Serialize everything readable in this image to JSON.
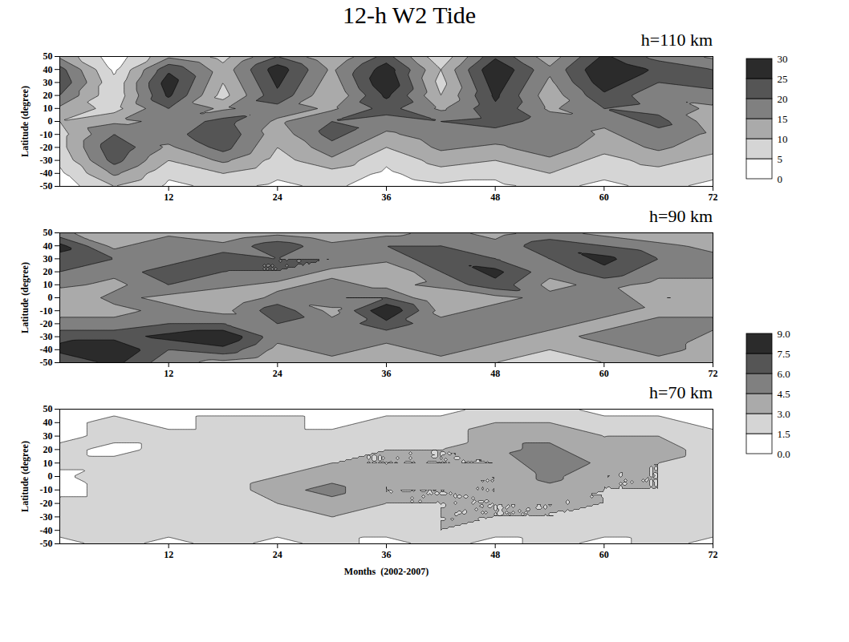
{
  "chart_data": {
    "type": "contour",
    "title": "12-h W2 Tide",
    "ylabel": "Latitude (degree)",
    "x": [
      0,
      6,
      12,
      18,
      24,
      30,
      36,
      42,
      48,
      54,
      60,
      66,
      72
    ],
    "y": [
      -50,
      -40,
      -30,
      -20,
      -10,
      0,
      10,
      20,
      30,
      40,
      50
    ],
    "xlim": [
      0,
      72
    ],
    "xticks": [
      12,
      24,
      36,
      48,
      60,
      72
    ],
    "ylim": [
      -50,
      50
    ],
    "yticks": [
      -50,
      -40,
      -30,
      -20,
      -10,
      0,
      10,
      20,
      30,
      40,
      50
    ],
    "panels": [
      {
        "label": "h=110 km",
        "values": [
          [
            2,
            4,
            6,
            8,
            8,
            10,
            14,
            20,
            24,
            22,
            14
          ],
          [
            10,
            16,
            22,
            24,
            20,
            14,
            8,
            6,
            6,
            4,
            2
          ],
          [
            4,
            6,
            10,
            14,
            18,
            16,
            20,
            26,
            28,
            24,
            14
          ],
          [
            6,
            10,
            16,
            22,
            24,
            22,
            14,
            8,
            10,
            12,
            8
          ],
          [
            4,
            6,
            8,
            10,
            12,
            14,
            18,
            24,
            26,
            28,
            20
          ],
          [
            6,
            8,
            14,
            18,
            22,
            20,
            14,
            10,
            12,
            14,
            10
          ],
          [
            2,
            4,
            6,
            10,
            14,
            18,
            22,
            26,
            30,
            28,
            22
          ],
          [
            4,
            8,
            12,
            16,
            18,
            20,
            14,
            10,
            8,
            10,
            6
          ],
          [
            4,
            6,
            10,
            14,
            18,
            22,
            24,
            26,
            28,
            30,
            24
          ],
          [
            6,
            10,
            14,
            18,
            20,
            18,
            14,
            12,
            14,
            16,
            12
          ],
          [
            4,
            6,
            8,
            12,
            14,
            16,
            20,
            24,
            28,
            30,
            26
          ],
          [
            6,
            8,
            12,
            16,
            18,
            22,
            18,
            16,
            20,
            24,
            18
          ],
          [
            4,
            6,
            8,
            12,
            14,
            12,
            14,
            18,
            22,
            20,
            14
          ]
        ]
      },
      {
        "label": "h=90 km",
        "values": [
          [
            6,
            8,
            7,
            5,
            4,
            3,
            5,
            6,
            7,
            8,
            5
          ],
          [
            8,
            9,
            7,
            5,
            4,
            5,
            4,
            5,
            6,
            4,
            3
          ],
          [
            5,
            6,
            8,
            6,
            5,
            4,
            6,
            7,
            5,
            6,
            4
          ],
          [
            4,
            7,
            9,
            6,
            4,
            3,
            5,
            6,
            7,
            5,
            3
          ],
          [
            3,
            4,
            5,
            6,
            7,
            5,
            4,
            6,
            6,
            7,
            4
          ],
          [
            4,
            5,
            6,
            5,
            4,
            6,
            5,
            4,
            6,
            5,
            3
          ],
          [
            3,
            4,
            5,
            7,
            9,
            6,
            4,
            3,
            5,
            6,
            4
          ],
          [
            4,
            5,
            6,
            5,
            4,
            3,
            5,
            6,
            7,
            6,
            5
          ],
          [
            3,
            4,
            5,
            6,
            5,
            4,
            7,
            8,
            6,
            5,
            4
          ],
          [
            2,
            3,
            4,
            5,
            6,
            5,
            4,
            5,
            6,
            7,
            5
          ],
          [
            3,
            4,
            5,
            4,
            5,
            6,
            5,
            7,
            8,
            6,
            4
          ],
          [
            4,
            5,
            6,
            5,
            4,
            3,
            4,
            5,
            6,
            5,
            3
          ],
          [
            3,
            4,
            4,
            5,
            4,
            3,
            4,
            5,
            5,
            4,
            3
          ]
        ]
      },
      {
        "label": "h=70 km",
        "xlabel": "Months  (2002-2007)",
        "values": [
          [
            1,
            2,
            3,
            2,
            1,
            1,
            2,
            2,
            1,
            1,
            1
          ],
          [
            2,
            3,
            2,
            2,
            2,
            3,
            2,
            1,
            2,
            2,
            1
          ],
          [
            1,
            2,
            2,
            3,
            2,
            2,
            3,
            2,
            2,
            1,
            1
          ],
          [
            2,
            3,
            3,
            2,
            2,
            2,
            3,
            3,
            2,
            2,
            1
          ],
          [
            1,
            2,
            2,
            3,
            4,
            3,
            2,
            2,
            2,
            2,
            1
          ],
          [
            2,
            2,
            3,
            4,
            5,
            4,
            3,
            2,
            2,
            1,
            1
          ],
          [
            1,
            2,
            2,
            3,
            3,
            3,
            3,
            3,
            2,
            2,
            1
          ],
          [
            2,
            3,
            3,
            3,
            3,
            4,
            3,
            3,
            2,
            2,
            1
          ],
          [
            1,
            2,
            3,
            3,
            3,
            3,
            3,
            4,
            4,
            3,
            2
          ],
          [
            2,
            2,
            3,
            3,
            4,
            5,
            6,
            5,
            4,
            3,
            2
          ],
          [
            1,
            2,
            2,
            3,
            3,
            3,
            4,
            3,
            3,
            2,
            1
          ],
          [
            2,
            2,
            3,
            2,
            3,
            3,
            3,
            4,
            3,
            2,
            1
          ],
          [
            1,
            2,
            2,
            2,
            2,
            2,
            2,
            2,
            2,
            1,
            1
          ]
        ]
      }
    ],
    "colorbars": [
      {
        "range": [
          0,
          30
        ],
        "ticks": [
          0,
          5,
          10,
          15,
          20,
          25,
          30
        ],
        "panels": [
          "h=110 km"
        ]
      },
      {
        "range": [
          0,
          9
        ],
        "ticks": [
          {
            "value": 0,
            "label": "0.0"
          },
          1.5,
          {
            "value": 3,
            "label": "3.0"
          },
          4.5,
          {
            "value": 6,
            "label": "6.0"
          },
          7.5,
          {
            "value": 9,
            "label": "9.0"
          }
        ],
        "panels": [
          "h=90 km",
          "h=70 km"
        ]
      }
    ]
  }
}
